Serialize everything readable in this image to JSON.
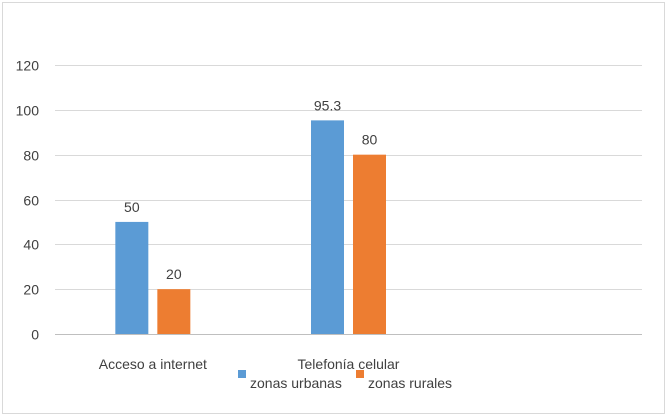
{
  "chart_data": {
    "type": "bar",
    "categories": [
      "Acceso a internet",
      "Telefonía celular",
      ""
    ],
    "series": [
      {
        "name": "zonas urbanas",
        "values": [
          50,
          95.3,
          null
        ],
        "color": "#5b9bd5"
      },
      {
        "name": "zonas rurales",
        "values": [
          20,
          80,
          null
        ],
        "color": "#ed7d31"
      }
    ],
    "ylim": [
      0,
      120
    ],
    "yticks": [
      0,
      20,
      40,
      60,
      80,
      100,
      120
    ],
    "grid": true,
    "legend_position": "bottom"
  }
}
